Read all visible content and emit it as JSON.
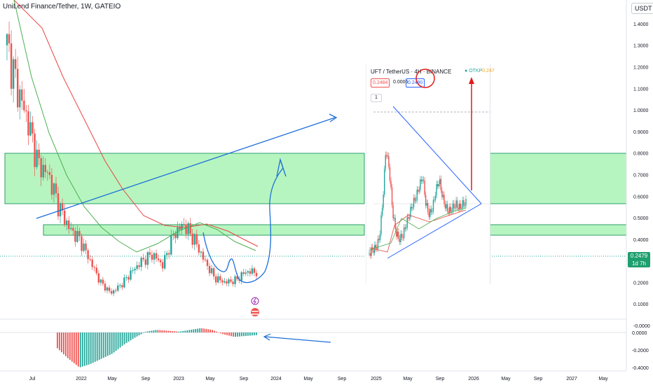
{
  "header": {
    "title": "UniLend Finance/Tether, 1W, GATEIO",
    "currency": "USDT"
  },
  "current_price": {
    "value": "0.2479",
    "countdown": "1d 7h"
  },
  "colors": {
    "candle_up": "#26a69a",
    "candle_down": "#ef5350",
    "zone_fill": "#b7f5c0",
    "zone_border": "#2e9e6b",
    "drawing_blue": "#1e6fd9",
    "ma_red": "#e94444",
    "ma_green": "#4caf50",
    "annotation_red": "#e01b1b",
    "price_tag": "#1e9f6e"
  },
  "icons": [
    "lightning-icon",
    "us-flag-icon",
    "collapse-chevron-icon"
  ],
  "inset": {
    "title": "UFT / TetherUS · 4H · BINANCE",
    "dot_label": "",
    "otkp_label": "OTKP",
    "otkp_value": "0.247",
    "bid": "0.2484",
    "spread": "0.0006",
    "ask": "0.2490",
    "collapse_label": "1"
  },
  "chart_data": [
    {
      "type": "candlestick",
      "title": "UniLend Finance/Tether, 1W, GATEIO",
      "x_tick_labels": [
        "Jul",
        "2022",
        "May",
        "Sep",
        "2023",
        "May",
        "Sep",
        "2024",
        "May",
        "Sep",
        "2025",
        "May",
        "Sep",
        "2026",
        "May",
        "Sep",
        "2027",
        "May"
      ],
      "y_tick_labels": [
        "1.4000",
        "1.3000",
        "1.2000",
        "1.1000",
        "1.0000",
        "0.9000",
        "0.8000",
        "0.7000",
        "0.6000",
        "0.5000",
        "0.4000",
        "0.3000",
        "0.2000",
        "0.1000",
        "-0.0000"
      ],
      "ylim": [
        -0.005,
        1.49
      ],
      "current_price": 0.2479,
      "zones": [
        {
          "low": 0.505,
          "high": 0.755
        },
        {
          "low": 0.353,
          "high": 0.405
        }
      ],
      "series_close_approx": [
        1.3,
        1.1,
        0.95,
        0.75,
        0.7,
        0.55,
        0.45,
        0.4,
        0.3,
        0.2,
        0.15,
        0.19,
        0.25,
        0.3,
        0.33,
        0.28,
        0.42,
        0.47,
        0.4,
        0.3,
        0.22,
        0.2,
        0.21,
        0.25,
        0.2479
      ]
    },
    {
      "type": "histogram",
      "title": "",
      "y_tick_labels": [
        "0.0000",
        "-0.2000",
        "-0.4000"
      ],
      "ylim": [
        -0.42,
        0.04
      ],
      "values_approx": [
        -0.18,
        -0.3,
        -0.4,
        -0.36,
        -0.3,
        -0.24,
        -0.14,
        -0.06,
        0.01,
        0.03,
        0.02,
        0.01,
        0.03,
        0.05,
        0.03,
        -0.02,
        -0.05,
        -0.04,
        -0.03
      ]
    }
  ]
}
